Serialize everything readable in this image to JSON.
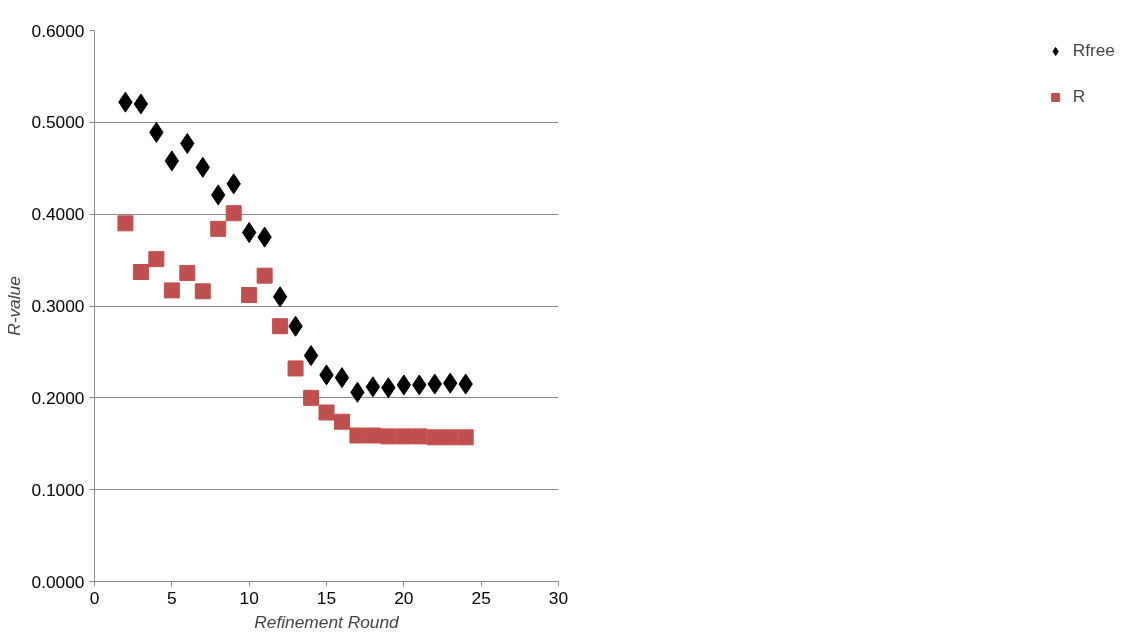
{
  "chart_data": {
    "type": "scatter",
    "xlabel": "Refinement Round",
    "ylabel": "R-value",
    "x": [
      2,
      3,
      4,
      5,
      6,
      7,
      8,
      9,
      10,
      11,
      12,
      13,
      14,
      15,
      16,
      17,
      18,
      19,
      20,
      21,
      22,
      23,
      24
    ],
    "series": [
      {
        "name": "Rfree",
        "color": "#000000",
        "marker": "diamond",
        "values": [
          0.522,
          0.52,
          0.489,
          0.458,
          0.477,
          0.451,
          0.421,
          0.433,
          0.38,
          0.375,
          0.31,
          0.278,
          0.246,
          0.225,
          0.222,
          0.206,
          0.212,
          0.211,
          0.214,
          0.214,
          0.215,
          0.216,
          0.215
        ]
      },
      {
        "name": "R",
        "color": "#c0504d",
        "marker": "square",
        "values": [
          0.39,
          0.337,
          0.351,
          0.317,
          0.336,
          0.316,
          0.384,
          0.401,
          0.312,
          0.333,
          0.278,
          0.232,
          0.2,
          0.184,
          0.174,
          0.159,
          0.159,
          0.158,
          0.158,
          0.158,
          0.157,
          0.157,
          0.157
        ]
      }
    ],
    "xlim": [
      0,
      30
    ],
    "xticks": [
      0,
      5,
      10,
      15,
      20,
      25,
      30
    ],
    "ylim": [
      0,
      0.6
    ],
    "yticks": [
      {
        "value": 0,
        "label": "0.0000"
      },
      {
        "value": 0.1,
        "label": "0.1000"
      },
      {
        "value": 0.2,
        "label": "0.2000"
      },
      {
        "value": 0.3,
        "label": "0.3000"
      },
      {
        "value": 0.4,
        "label": "0.4000"
      },
      {
        "value": 0.5,
        "label": "0.5000"
      },
      {
        "value": 0.6,
        "label": "0.6000"
      }
    ],
    "grid": "y",
    "legend": "right"
  }
}
